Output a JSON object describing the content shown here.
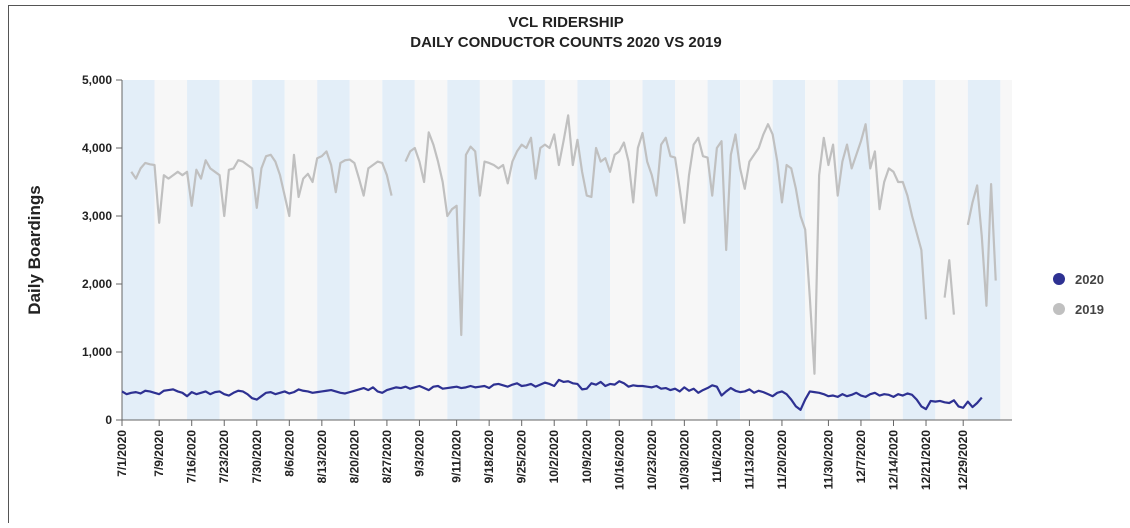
{
  "chart_data": {
    "type": "line",
    "title": [
      "VCL RIDERSHIP",
      "DAILY CONDUCTOR COUNTS 2020 VS 2019"
    ],
    "y_label": "Daily Boardings",
    "categories": [
      "7/1/2020",
      null,
      null,
      null,
      null,
      null,
      null,
      null,
      "7/9/2020",
      null,
      null,
      null,
      null,
      null,
      null,
      "7/16/2020",
      null,
      null,
      null,
      null,
      null,
      null,
      "7/23/2020",
      null,
      null,
      null,
      null,
      null,
      null,
      "7/30/2020",
      null,
      null,
      null,
      null,
      null,
      null,
      "8/6/2020",
      null,
      null,
      null,
      null,
      null,
      null,
      "8/13/2020",
      null,
      null,
      null,
      null,
      null,
      null,
      "8/20/2020",
      null,
      null,
      null,
      null,
      null,
      null,
      "8/27/2020",
      null,
      null,
      null,
      null,
      null,
      null,
      "9/3/2020",
      null,
      null,
      null,
      null,
      null,
      null,
      null,
      "9/11/2020",
      null,
      null,
      null,
      null,
      null,
      null,
      "9/18/2020",
      null,
      null,
      null,
      null,
      null,
      null,
      "9/25/2020",
      null,
      null,
      null,
      null,
      null,
      null,
      "10/2/2020",
      null,
      null,
      null,
      null,
      null,
      null,
      "10/9/2020",
      null,
      null,
      null,
      null,
      null,
      null,
      "10/16/2020",
      null,
      null,
      null,
      null,
      null,
      null,
      "10/23/2020",
      null,
      null,
      null,
      null,
      null,
      null,
      "10/30/2020",
      null,
      null,
      null,
      null,
      null,
      null,
      "11/6/2020",
      null,
      null,
      null,
      null,
      null,
      null,
      "11/13/2020",
      null,
      null,
      null,
      null,
      null,
      null,
      "11/20/2020",
      null,
      null,
      null,
      null,
      null,
      null,
      null,
      null,
      null,
      "11/30/2020",
      null,
      null,
      null,
      null,
      null,
      null,
      "12/7/2020",
      null,
      null,
      null,
      null,
      null,
      null,
      "12/14/2020",
      null,
      null,
      null,
      null,
      null,
      null,
      "12/21/2020",
      null,
      null,
      null,
      null,
      null,
      null,
      null,
      "12/29/2020",
      null,
      null,
      null,
      null,
      null,
      null,
      null
    ],
    "series": [
      {
        "name": "2020",
        "color": "#2e3192",
        "values": [
          420,
          380,
          400,
          410,
          390,
          430,
          420,
          400,
          380,
          430,
          440,
          450,
          420,
          400,
          350,
          410,
          380,
          400,
          420,
          380,
          410,
          420,
          380,
          360,
          400,
          430,
          420,
          380,
          320,
          300,
          350,
          400,
          410,
          380,
          400,
          420,
          390,
          410,
          450,
          430,
          420,
          400,
          410,
          420,
          430,
          440,
          420,
          400,
          390,
          410,
          430,
          450,
          470,
          440,
          480,
          420,
          400,
          440,
          460,
          480,
          470,
          490,
          460,
          480,
          500,
          470,
          440,
          490,
          500,
          460,
          470,
          480,
          490,
          470,
          480,
          500,
          480,
          490,
          500,
          470,
          520,
          530,
          510,
          490,
          520,
          540,
          500,
          510,
          530,
          490,
          520,
          550,
          530,
          500,
          590,
          560,
          570,
          540,
          530,
          450,
          460,
          540,
          520,
          560,
          500,
          530,
          520,
          570,
          540,
          490,
          510,
          500,
          500,
          490,
          480,
          500,
          460,
          470,
          440,
          460,
          420,
          480,
          430,
          460,
          400,
          440,
          470,
          510,
          490,
          360,
          420,
          470,
          430,
          410,
          420,
          450,
          400,
          430,
          410,
          380,
          350,
          400,
          420,
          380,
          300,
          200,
          150,
          300,
          420,
          410,
          400,
          380,
          350,
          360,
          340,
          380,
          350,
          370,
          400,
          360,
          340,
          380,
          400,
          360,
          380,
          370,
          340,
          380,
          360,
          390,
          370,
          300,
          200,
          160,
          280,
          270,
          280,
          260,
          250,
          290,
          200,
          180,
          270,
          190,
          250,
          330,
          null,
          null,
          null
        ]
      },
      {
        "name": "2019",
        "color": "#c0c0c0",
        "values": [
          null,
          null,
          3650,
          3550,
          3700,
          3780,
          3760,
          3750,
          2900,
          3600,
          3550,
          3600,
          3650,
          3600,
          3650,
          3150,
          3680,
          3550,
          3820,
          3700,
          3650,
          3600,
          3000,
          3680,
          3700,
          3820,
          3800,
          3750,
          3700,
          3120,
          3700,
          3880,
          3900,
          3800,
          3600,
          3300,
          3000,
          3900,
          3280,
          3550,
          3620,
          3500,
          3850,
          3880,
          3950,
          3750,
          3350,
          3780,
          3820,
          3830,
          3780,
          3550,
          3300,
          3700,
          3750,
          3800,
          3780,
          3600,
          3300,
          null,
          null,
          3800,
          3950,
          4000,
          3800,
          3500,
          4230,
          4050,
          3800,
          3500,
          3000,
          3100,
          3150,
          1250,
          3900,
          4020,
          3950,
          3300,
          3800,
          3780,
          3750,
          3700,
          3750,
          3480,
          3800,
          3950,
          4050,
          4000,
          4150,
          3550,
          4000,
          4050,
          4000,
          4200,
          3750,
          4100,
          4480,
          3750,
          4120,
          3650,
          3300,
          3280,
          4000,
          3800,
          3850,
          3650,
          3900,
          3950,
          4080,
          3800,
          3200,
          4000,
          4220,
          3800,
          3600,
          3300,
          4050,
          4150,
          3880,
          3860,
          3400,
          2900,
          3600,
          4050,
          4150,
          3880,
          3860,
          3300,
          4000,
          4100,
          2500,
          3900,
          4200,
          3700,
          3400,
          3800,
          3900,
          4000,
          4200,
          4350,
          4200,
          3800,
          3200,
          3750,
          3700,
          3400,
          3000,
          2800,
          1800,
          680,
          3600,
          4150,
          3750,
          4050,
          3300,
          3800,
          4050,
          3700,
          3900,
          4100,
          4350,
          3700,
          3950,
          3100,
          3500,
          3700,
          3650,
          3500,
          3500,
          3300,
          3000,
          2750,
          2500,
          1480,
          null,
          null,
          null,
          1800,
          2350,
          1550,
          null,
          null,
          2870,
          3200,
          3450,
          2700,
          1680,
          3470,
          2050
        ]
      }
    ],
    "ylim": [
      0,
      5000
    ],
    "yticks": [
      0,
      {
        "value": 1000,
        "label": "1,000"
      },
      {
        "value": 2000,
        "label": "2,000"
      },
      {
        "value": 3000,
        "label": "3,000"
      },
      {
        "value": 4000,
        "label": "4,000"
      },
      {
        "value": 5000,
        "label": "5,000"
      }
    ],
    "grid": false,
    "legend": "right"
  }
}
